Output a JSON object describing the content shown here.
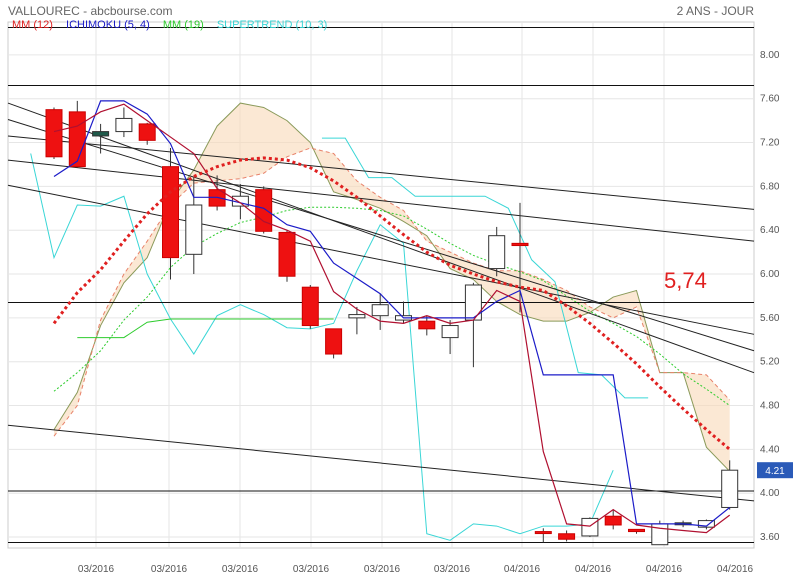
{
  "header": {
    "title": "VALLOUREC - abcbourse.com",
    "period": "2 ANS - JOUR"
  },
  "legend": [
    {
      "label": "MM (12)",
      "color": "#e02020"
    },
    {
      "label": "ICHIMOKU (5, 4)",
      "color": "#1c1cc8"
    },
    {
      "label": "MM (19)",
      "color": "#2ecc2e"
    },
    {
      "label": "SUPERTREND (10, 3)",
      "color": "#3ad6d6"
    }
  ],
  "annotation": "5,74",
  "last_price": "4.21",
  "chart_data": {
    "type": "candlestick",
    "ylim": [
      3.5,
      8.3
    ],
    "grid": true,
    "y_ticks": [
      "8.00",
      "7.60",
      "7.20",
      "6.80",
      "6.40",
      "6.00",
      "5.60",
      "5.20",
      "4.80",
      "4.40",
      "4.00",
      "3.60"
    ],
    "x_ticks": [
      "03/2016",
      "03/2016",
      "03/2016",
      "03/2016",
      "03/2016",
      "03/2016",
      "04/2016",
      "04/2016",
      "04/2016",
      "04/2016"
    ],
    "candles": [
      {
        "o": 7.5,
        "h": 7.52,
        "c": 7.07,
        "l": 7.05,
        "color": "red"
      },
      {
        "o": 7.48,
        "h": 7.58,
        "c": 6.98,
        "l": 6.97,
        "color": "red"
      },
      {
        "o": 7.3,
        "h": 7.37,
        "c": 7.26,
        "l": 7.1,
        "color": "dark"
      },
      {
        "o": 7.3,
        "h": 7.52,
        "c": 7.42,
        "l": 7.25,
        "color": "white"
      },
      {
        "o": 7.37,
        "h": 7.38,
        "c": 7.22,
        "l": 7.18,
        "color": "red"
      },
      {
        "o": 6.98,
        "h": 7.15,
        "c": 6.15,
        "l": 5.95,
        "color": "red"
      },
      {
        "o": 6.18,
        "h": 6.88,
        "c": 6.63,
        "l": 6.0,
        "color": "white"
      },
      {
        "o": 6.77,
        "h": 6.9,
        "c": 6.62,
        "l": 6.58,
        "color": "red"
      },
      {
        "o": 6.62,
        "h": 6.82,
        "c": 6.71,
        "l": 6.5,
        "color": "white"
      },
      {
        "o": 6.77,
        "h": 6.8,
        "c": 6.39,
        "l": 6.37,
        "color": "red"
      },
      {
        "o": 6.38,
        "h": 6.4,
        "c": 5.98,
        "l": 5.93,
        "color": "red"
      },
      {
        "o": 5.88,
        "h": 5.9,
        "c": 5.53,
        "l": 5.5,
        "color": "red"
      },
      {
        "o": 5.5,
        "h": 5.5,
        "c": 5.27,
        "l": 5.23,
        "color": "red"
      },
      {
        "o": 5.63,
        "h": 5.7,
        "c": 5.6,
        "l": 5.45,
        "color": "white"
      },
      {
        "o": 5.62,
        "h": 5.82,
        "c": 5.72,
        "l": 5.49,
        "color": "white"
      },
      {
        "o": 5.58,
        "h": 5.75,
        "c": 5.62,
        "l": 5.55,
        "color": "white"
      },
      {
        "o": 5.57,
        "h": 5.62,
        "c": 5.5,
        "l": 5.44,
        "color": "red"
      },
      {
        "o": 5.42,
        "h": 5.58,
        "c": 5.53,
        "l": 5.27,
        "color": "white"
      },
      {
        "o": 5.58,
        "h": 5.92,
        "c": 5.9,
        "l": 5.15,
        "color": "white"
      },
      {
        "o": 6.05,
        "h": 6.43,
        "c": 6.35,
        "l": 5.98,
        "color": "white"
      },
      {
        "o": 6.28,
        "h": 6.65,
        "c": 6.26,
        "l": 5.65,
        "color": "red"
      },
      {
        "o": 3.64,
        "h": 3.68,
        "c": 3.65,
        "l": 3.55,
        "color": "red"
      },
      {
        "o": 3.63,
        "h": 3.66,
        "c": 3.58,
        "l": 3.56,
        "color": "red"
      },
      {
        "o": 3.61,
        "h": 3.78,
        "c": 3.77,
        "l": 3.6,
        "color": "white"
      },
      {
        "o": 3.79,
        "h": 3.85,
        "c": 3.71,
        "l": 3.67,
        "color": "red"
      },
      {
        "o": 3.67,
        "h": 3.67,
        "c": 3.65,
        "l": 3.63,
        "color": "red"
      },
      {
        "o": 3.53,
        "h": 3.75,
        "c": 3.72,
        "l": 3.53,
        "color": "white"
      },
      {
        "o": 3.72,
        "h": 3.75,
        "c": 3.73,
        "l": 3.69,
        "color": "dark"
      },
      {
        "o": 3.69,
        "h": 3.76,
        "c": 3.75,
        "l": 3.67,
        "color": "white"
      },
      {
        "o": 3.87,
        "h": 4.3,
        "c": 4.21,
        "l": 3.85,
        "color": "white"
      }
    ],
    "series": [
      {
        "key": "mm12",
        "values": [
          5.55,
          5.83,
          6.04,
          6.3,
          6.55,
          6.75,
          6.89,
          6.98,
          7.04,
          7.06,
          7.04,
          6.97,
          6.85,
          6.7,
          6.53,
          6.36,
          6.2,
          6.08,
          6.0,
          5.93,
          5.88,
          5.85,
          5.71,
          5.55,
          5.37,
          5.18,
          4.97,
          4.77,
          4.58,
          4.4
        ]
      },
      {
        "key": "mm19",
        "values": [
          4.93,
          5.1,
          5.3,
          5.58,
          5.79,
          6.06,
          6.25,
          6.37,
          6.47,
          6.52,
          6.58,
          6.61,
          6.61,
          6.6,
          6.58,
          6.53,
          6.41,
          6.28,
          6.17,
          6.09,
          6.02,
          5.94,
          5.8,
          5.66,
          5.55,
          5.43,
          5.27,
          5.09,
          4.95,
          4.8
        ]
      },
      {
        "key": "tenkan",
        "values": [
          6.89,
          7.03,
          7.58,
          7.58,
          7.46,
          7.19,
          6.7,
          6.7,
          6.65,
          6.6,
          6.45,
          6.39,
          6.1,
          5.96,
          5.82,
          5.6,
          5.6,
          5.6,
          5.6,
          5.75,
          5.85,
          5.08,
          5.08,
          5.08,
          5.08,
          3.72,
          3.72,
          3.72,
          3.7,
          3.87
        ]
      },
      {
        "key": "kijun",
        "values": [
          7.3,
          7.35,
          7.48,
          7.55,
          7.4,
          7.25,
          7.1,
          6.78,
          6.65,
          6.48,
          6.4,
          6.3,
          5.84,
          5.68,
          5.57,
          5.55,
          5.62,
          5.55,
          5.58,
          5.85,
          5.75,
          4.38,
          3.72,
          3.7,
          3.85,
          3.71,
          3.68,
          3.66,
          3.64,
          3.8
        ]
      },
      {
        "key": "ssa",
        "values": [
          4.58,
          4.92,
          5.53,
          5.92,
          6.15,
          6.66,
          6.95,
          7.35,
          7.56,
          7.52,
          7.4,
          7.2,
          6.75,
          6.68,
          6.6,
          6.48,
          6.35,
          6.05,
          5.95,
          5.75,
          5.63,
          5.57,
          5.57,
          5.65,
          5.79,
          5.85,
          5.1,
          5.1,
          4.42,
          4.2
        ]
      },
      {
        "key": "ssb",
        "values": [
          4.52,
          4.8,
          5.58,
          6.0,
          6.3,
          6.63,
          6.83,
          6.85,
          6.87,
          6.92,
          7.07,
          7.15,
          7.1,
          6.85,
          6.7,
          6.58,
          6.3,
          6.2,
          6.1,
          6.03,
          6.03,
          5.95,
          5.85,
          5.7,
          5.6,
          5.7,
          5.1,
          5.1,
          5.08,
          4.85
        ]
      },
      {
        "key": "mm19_flat",
        "values": [
          5.42,
          5.42,
          5.42,
          5.56,
          5.59,
          5.59,
          5.59,
          5.59,
          5.59,
          5.59,
          5.59,
          5.59
        ]
      },
      {
        "key": "supertrend",
        "values": [
          7.1,
          6.15,
          6.63,
          6.62,
          6.71,
          6.0,
          5.59,
          5.27,
          5.62,
          5.72,
          5.63,
          5.51,
          5.5,
          5.55,
          6.03,
          6.45,
          6.28,
          3.63,
          3.57,
          3.72,
          3.7,
          3.63,
          3.7,
          3.7,
          3.72,
          4.21
        ]
      },
      {
        "key": "supertrend_upper",
        "values": [
          7.24,
          7.24,
          6.88,
          6.88,
          6.71,
          6.71,
          6.71,
          6.71,
          6.6,
          6.13,
          5.93,
          5.1,
          5.08,
          4.87,
          4.87
        ]
      },
      {
        "key": "chikou",
        "values": [
          6.6,
          6.7,
          6.95,
          7.27,
          7.57,
          7.48,
          7.28,
          6.95,
          6.8,
          6.79,
          6.6,
          6.58,
          6.25,
          6.15,
          6.02,
          5.8,
          5.85,
          5.6
        ]
      }
    ],
    "levels": [
      8.25,
      7.72,
      5.74,
      4.02,
      3.55
    ],
    "trendlines": [
      {
        "from": [
          7.56,
          0
        ],
        "to": [
          5.1,
          1
        ]
      },
      {
        "from": [
          7.41,
          0
        ],
        "to": [
          5.3,
          1
        ]
      },
      {
        "from": [
          7.04,
          0
        ],
        "to": [
          6.3,
          1
        ]
      },
      {
        "from": [
          6.81,
          0
        ],
        "to": [
          5.45,
          1
        ]
      },
      {
        "from": [
          7.26,
          0
        ],
        "to": [
          6.59,
          1
        ]
      },
      {
        "from": [
          4.62,
          0
        ],
        "to": [
          3.93,
          1
        ]
      }
    ]
  }
}
